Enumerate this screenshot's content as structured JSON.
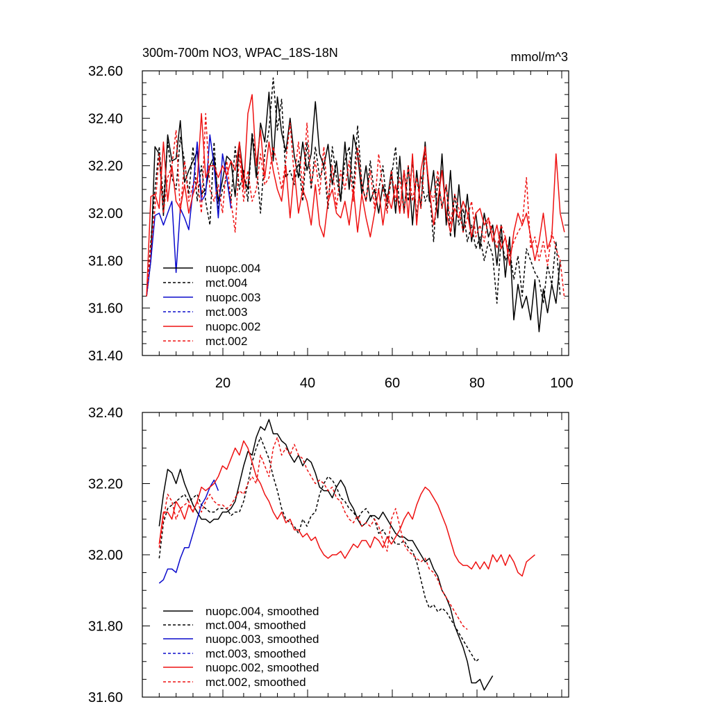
{
  "chart_data": [
    {
      "type": "line",
      "title": "300m-700m NO3, WPAC_18S-18N",
      "units": "mmol/m^3",
      "xlim": [
        0,
        101
      ],
      "ylim": [
        31.4,
        32.6
      ],
      "x_ticks": [
        "20",
        "40",
        "60",
        "80",
        "100"
      ],
      "y_ticks": [
        "31.40",
        "31.60",
        "31.80",
        "32.00",
        "32.20",
        "32.40",
        "32.60"
      ],
      "legend": [
        "nuopc.004",
        "mct.004",
        "nuopc.003",
        "mct.003",
        "nuopc.002",
        "mct.002"
      ],
      "series": [
        {
          "name": "nuopc.004",
          "color": "#000000",
          "dash": "solid",
          "x_start": 1,
          "values": [
            31.65,
            31.8,
            32.28,
            32.25,
            31.99,
            32.33,
            32.22,
            32.23,
            32.39,
            32.13,
            32.18,
            32.22,
            32.26,
            32.08,
            32.1,
            32.2,
            32.24,
            32.05,
            32.14,
            32.24,
            32.22,
            32.07,
            32.3,
            32.15,
            32.1,
            32.33,
            32.15,
            32.38,
            32.3,
            32.51,
            32.22,
            32.49,
            32.34,
            32.26,
            32.4,
            32.24,
            32.15,
            32.3,
            32.18,
            32.25,
            32.47,
            32.25,
            32.2,
            32.29,
            32.12,
            32.22,
            32.05,
            32.3,
            32.1,
            32.33,
            32.25,
            32.08,
            32.2,
            32.05,
            32.1,
            32.0,
            32.12,
            32.05,
            32.18,
            32.0,
            32.24,
            32.0,
            32.2,
            31.95,
            32.18,
            32.02,
            32.3,
            32.05,
            32.18,
            31.98,
            32.25,
            31.95,
            32.18,
            31.9,
            32.12,
            31.92,
            32.08,
            31.88,
            32.0,
            31.85,
            32.0,
            31.9,
            31.95,
            31.78,
            31.95,
            31.73,
            31.9,
            31.55,
            31.7,
            31.6,
            31.65,
            31.55,
            31.72,
            31.5,
            31.68,
            31.58,
            31.7,
            31.62,
            31.8
          ]
        },
        {
          "name": "mct.004",
          "color": "#000000",
          "dash": "dashed",
          "x_start": 1,
          "values": [
            31.65,
            31.88,
            32.1,
            32.28,
            32.05,
            32.3,
            32.15,
            32.1,
            32.32,
            32.22,
            32.08,
            32.28,
            32.05,
            32.2,
            32.05,
            31.95,
            32.3,
            32.02,
            32.1,
            32.15,
            32.05,
            32.28,
            32.1,
            32.18,
            32.05,
            32.34,
            32.22,
            32.0,
            32.25,
            32.35,
            32.57,
            32.35,
            32.48,
            32.15,
            32.18,
            32.12,
            32.22,
            32.05,
            32.3,
            32.1,
            32.28,
            32.15,
            32.2,
            32.02,
            32.28,
            32.15,
            32.05,
            32.22,
            32.28,
            32.1,
            32.37,
            32.12,
            32.05,
            32.22,
            32.08,
            32.1,
            32.2,
            32.02,
            32.15,
            32.28,
            32.0,
            32.18,
            32.05,
            32.22,
            31.98,
            32.16,
            32.05,
            32.1,
            31.88,
            32.15,
            32.02,
            32.12,
            31.9,
            32.08,
            31.95,
            32.02,
            31.88,
            31.95,
            31.85,
            31.9,
            31.8,
            31.88,
            31.82,
            31.62,
            31.9,
            31.8,
            31.85,
            31.72,
            31.82,
            31.65,
            31.85,
            31.8,
            31.75,
            31.72,
            31.62,
            31.78,
            31.7,
            31.88,
            31.65
          ]
        },
        {
          "name": "nuopc.003",
          "color": "#0a0acc",
          "dash": "solid",
          "x_start": 1,
          "values": [
            31.65,
            31.8,
            31.99,
            32.0,
            31.95,
            32.0,
            32.05,
            31.75,
            32.02,
            31.98,
            31.93,
            32.1,
            32.3,
            32.05,
            32.08,
            32.33,
            32.2,
            31.98,
            32.25,
            32.15,
            32.02
          ]
        },
        {
          "name": "nuopc.002",
          "color": "#ee1111",
          "dash": "solid",
          "x_start": 1,
          "values": [
            31.65,
            32.07,
            32.08,
            32.02,
            32.3,
            32.05,
            32.2,
            32.05,
            32.02,
            32.12,
            32.0,
            32.08,
            32.13,
            32.42,
            32.15,
            32.2,
            32.2,
            32.15,
            32.2,
            32.16,
            32.22,
            32.18,
            32.3,
            32.1,
            32.42,
            32.5,
            32.2,
            32.35,
            32.15,
            32.3,
            32.18,
            32.1,
            32.05,
            32.2,
            31.98,
            32.18,
            32.0,
            32.1,
            32.05,
            31.95,
            32.12,
            31.95,
            31.9,
            32.05,
            32.1,
            32.0,
            31.98,
            32.05,
            31.95,
            32.1,
            31.92,
            32.08,
            31.98,
            31.9,
            32.0,
            32.1,
            31.95,
            32.08,
            32.02,
            32.12,
            32.0,
            32.18,
            31.98,
            32.25,
            31.95,
            32.18,
            32.28,
            32.1,
            31.95,
            32.05,
            32.18,
            32.0,
            31.92,
            32.02,
            31.98,
            32.05,
            32.0,
            31.9,
            32.0,
            32.02,
            31.95,
            31.98,
            31.88,
            31.95,
            31.85,
            31.9,
            31.78,
            31.92,
            32.0,
            31.95,
            32.0,
            31.9,
            31.8,
            31.88,
            32.0,
            31.85,
            31.9,
            32.25,
            32.0,
            31.92
          ]
        },
        {
          "name": "mct.002",
          "color": "#ee1111",
          "dash": "dashed",
          "x_start": 1,
          "values": [
            31.65,
            31.85,
            32.02,
            32.25,
            32.0,
            32.15,
            32.2,
            32.35,
            32.0,
            32.22,
            32.05,
            32.12,
            32.15,
            32.0,
            32.42,
            32.1,
            32.05,
            32.12,
            32.0,
            32.22,
            32.05,
            31.92,
            32.25,
            32.05,
            32.18,
            32.05,
            32.1,
            32.25,
            32.12,
            32.15,
            32.28,
            32.2,
            32.1,
            32.22,
            32.38,
            32.15,
            32.3,
            32.1,
            32.38,
            32.12,
            32.22,
            32.08,
            32.28,
            32.05,
            32.2,
            32.02,
            32.18,
            32.1,
            32.22,
            32.05,
            32.28,
            32.12,
            32.05,
            32.18,
            32.02,
            32.25,
            32.1,
            32.0,
            32.18,
            32.05,
            32.15,
            32.0,
            32.2,
            32.05,
            32.15,
            32.02,
            32.25,
            32.1,
            32.05,
            32.18,
            32.02,
            32.12,
            31.95,
            32.08,
            32.02,
            31.92,
            31.98,
            32.05,
            31.9,
            31.95,
            31.88,
            31.98,
            31.92,
            31.85,
            31.95,
            31.9,
            31.82,
            31.88,
            31.92,
            31.95,
            32.15,
            31.85,
            31.9,
            31.8,
            31.88,
            31.78,
            31.92,
            31.85,
            31.8,
            31.64
          ]
        }
      ]
    },
    {
      "type": "line",
      "title": "",
      "xlim": [
        0,
        101
      ],
      "ylim": [
        31.6,
        32.4
      ],
      "x_ticks": [],
      "y_ticks": [
        "31.60",
        "31.80",
        "32.00",
        "32.20",
        "32.40"
      ],
      "legend": [
        "nuopc.004, smoothed",
        "mct.004, smoothed",
        "nuopc.003, smoothed",
        "mct.003, smoothed",
        "nuopc.002, smoothed",
        "mct.002, smoothed"
      ],
      "series": [
        {
          "name": "nuopc.004, smoothed",
          "color": "#000000",
          "dash": "solid",
          "x_start": 4,
          "values": [
            32.08,
            32.17,
            32.24,
            32.23,
            32.2,
            32.24,
            32.2,
            32.17,
            32.14,
            32.12,
            32.1,
            32.1,
            32.09,
            32.1,
            32.1,
            32.12,
            32.12,
            32.13,
            32.15,
            32.2,
            32.25,
            32.29,
            32.28,
            32.33,
            32.36,
            32.35,
            32.38,
            32.34,
            32.34,
            32.32,
            32.31,
            32.28,
            32.26,
            32.28,
            32.25,
            32.27,
            32.26,
            32.23,
            32.19,
            32.18,
            32.18,
            32.16,
            32.19,
            32.21,
            32.19,
            32.15,
            32.13,
            32.1,
            32.08,
            32.09,
            32.11,
            32.11,
            32.1,
            32.12,
            32.1,
            32.08,
            32.06,
            32.05,
            32.05,
            32.04,
            32.04,
            32.02,
            32.0,
            31.98,
            31.99,
            31.96,
            31.94,
            31.9,
            31.88,
            31.85,
            31.8,
            31.77,
            31.74,
            31.7,
            31.64,
            31.64,
            31.65,
            31.62,
            31.64,
            31.66
          ]
        },
        {
          "name": "mct.004, smoothed",
          "color": "#000000",
          "dash": "dashed",
          "x_start": 4,
          "values": [
            31.99,
            32.09,
            32.13,
            32.14,
            32.15,
            32.16,
            32.17,
            32.15,
            32.16,
            32.17,
            32.14,
            32.13,
            32.12,
            32.12,
            32.13,
            32.13,
            32.13,
            32.11,
            32.12,
            32.12,
            32.15,
            32.2,
            32.26,
            32.3,
            32.33,
            32.3,
            32.27,
            32.22,
            32.18,
            32.13,
            32.1,
            32.09,
            32.08,
            32.06,
            32.1,
            32.08,
            32.11,
            32.12,
            32.17,
            32.2,
            32.22,
            32.21,
            32.19,
            32.16,
            32.15,
            32.13,
            32.12,
            32.1,
            32.12,
            32.13,
            32.11,
            32.1,
            32.06,
            32.07,
            32.05,
            32.05,
            32.03,
            32.03,
            32.04,
            32.02,
            32.01,
            31.98,
            31.93,
            31.88,
            31.85,
            31.86,
            31.84,
            31.85,
            31.84,
            31.82,
            31.8,
            31.78,
            31.76,
            31.74,
            31.72,
            31.7,
            31.71
          ]
        },
        {
          "name": "nuopc.003, smoothed",
          "color": "#0a0acc",
          "dash": "solid",
          "x_start": 4,
          "values": [
            31.92,
            31.93,
            31.96,
            31.96,
            31.95,
            31.99,
            32.02,
            32.02,
            32.06,
            32.1,
            32.14,
            32.16,
            32.19,
            32.21,
            32.18
          ]
        },
        {
          "name": "nuopc.002, smoothed",
          "color": "#ee1111",
          "dash": "solid",
          "x_start": 4,
          "values": [
            32.03,
            32.12,
            32.12,
            32.1,
            32.15,
            32.13,
            32.1,
            32.14,
            32.12,
            32.15,
            32.19,
            32.18,
            32.19,
            32.2,
            32.22,
            32.25,
            32.24,
            32.27,
            32.3,
            32.28,
            32.32,
            32.3,
            32.26,
            32.22,
            32.2,
            32.17,
            32.15,
            32.12,
            32.1,
            32.12,
            32.09,
            32.1,
            32.07,
            32.07,
            32.05,
            32.06,
            32.04,
            32.05,
            32.02,
            32.0,
            31.99,
            32.0,
            32.0,
            32.01,
            31.99,
            32.01,
            32.03,
            32.02,
            32.04,
            32.04,
            32.02,
            32.05,
            32.04,
            32.02,
            32.05,
            32.03,
            32.05,
            32.07,
            32.1,
            32.12,
            32.1,
            32.14,
            32.17,
            32.19,
            32.18,
            32.16,
            32.14,
            32.11,
            32.08,
            32.04,
            32.0,
            31.98,
            31.97,
            31.97,
            31.96,
            31.98,
            31.96,
            31.98,
            31.96,
            32.0,
            31.98,
            32.0,
            31.97,
            32.0,
            31.98,
            31.95,
            31.94,
            31.98,
            31.99,
            32.0
          ]
        },
        {
          "name": "mct.002, smoothed",
          "color": "#ee1111",
          "dash": "dashed",
          "x_start": 4,
          "values": [
            32.02,
            32.1,
            32.17,
            32.15,
            32.1,
            32.13,
            32.14,
            32.15,
            32.12,
            32.15,
            32.12,
            32.15,
            32.17,
            32.15,
            32.14,
            32.14,
            32.13,
            32.14,
            32.16,
            32.18,
            32.17,
            32.2,
            32.22,
            32.2,
            32.28,
            32.25,
            32.22,
            32.3,
            32.33,
            32.28,
            32.3,
            32.28,
            32.31,
            32.28,
            32.27,
            32.24,
            32.22,
            32.2,
            32.21,
            32.2,
            32.18,
            32.19,
            32.16,
            32.15,
            32.12,
            32.1,
            32.09,
            32.11,
            32.08,
            32.09,
            32.08,
            32.1,
            32.08,
            32.04,
            32.01,
            32.1,
            32.13,
            32.08,
            32.03,
            32.01,
            32.0,
            31.99,
            31.98,
            31.99,
            31.96,
            31.95,
            31.93,
            31.9,
            31.88,
            31.86,
            31.84,
            31.82,
            31.8,
            31.79
          ]
        }
      ]
    }
  ]
}
